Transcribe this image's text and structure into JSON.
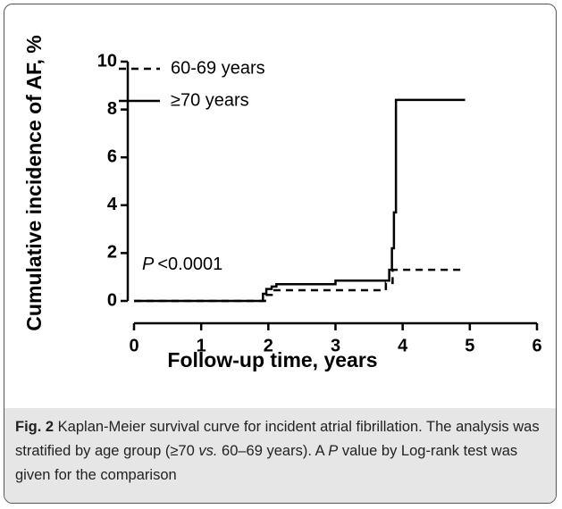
{
  "chart_data": {
    "type": "line",
    "xlabel": "Follow-up time, years",
    "ylabel": "Cumulative incidence of AF, %",
    "xlim": [
      0,
      6
    ],
    "xticks": [
      0,
      1,
      2,
      3,
      4,
      5,
      6
    ],
    "ylim": [
      0,
      10
    ],
    "yticks": [
      0,
      2,
      4,
      6,
      8,
      10
    ],
    "annotation": {
      "p": "P",
      "text": "<0.0001"
    },
    "legend": "upper left",
    "series": [
      {
        "name": "60-69 years",
        "color": "#000000",
        "dash": true,
        "x": [
          0,
          1.95,
          1.95,
          2.05,
          2.05,
          3.75,
          3.75,
          3.85,
          3.85,
          4.93
        ],
        "values": [
          0,
          0,
          0.25,
          0.25,
          0.45,
          0.45,
          0.75,
          0.75,
          1.3,
          1.3
        ]
      },
      {
        "name": "≥70 years",
        "color": "#000000",
        "dash": false,
        "x": [
          0,
          1.92,
          1.92,
          1.97,
          1.97,
          2.05,
          2.05,
          2.12,
          2.12,
          3.0,
          3.0,
          3.8,
          3.8,
          3.84,
          3.84,
          3.87,
          3.87,
          3.9,
          3.9,
          4.93
        ],
        "values": [
          0,
          0,
          0.3,
          0.3,
          0.5,
          0.5,
          0.6,
          0.6,
          0.7,
          0.7,
          0.85,
          0.85,
          1.3,
          1.3,
          2.2,
          2.2,
          3.7,
          3.7,
          8.4,
          8.4
        ]
      }
    ]
  },
  "caption": {
    "label": "Fig. 2",
    "parts": [
      " Kaplan-Meier survival curve for incident atrial fibrillation. The analysis was stratified by age group (≥70 ",
      "vs.",
      " 60–69 years). A ",
      "P",
      " value by Log-rank test was given for the comparison"
    ]
  }
}
